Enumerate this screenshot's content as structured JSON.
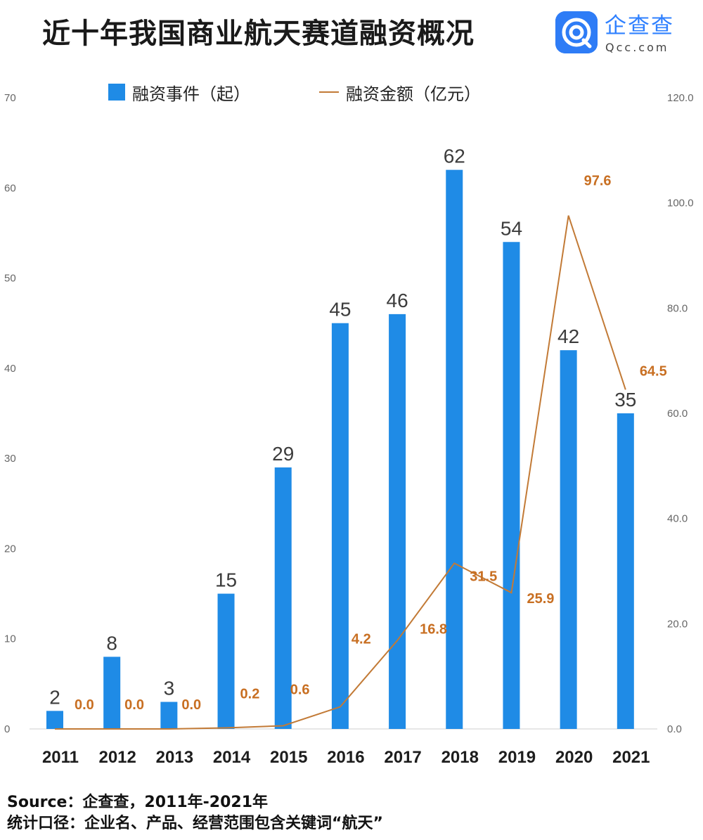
{
  "title": "近十年我国商业航天赛道融资概况",
  "brand": {
    "name": "企查查",
    "domain": "Qcc.com",
    "icon": "qcc-logo-icon",
    "colors": {
      "primary": "#2e7cf6",
      "text": "#2f80ff"
    }
  },
  "legend": {
    "bar_label": "融资事件（起）",
    "line_label": "融资金额（亿元）"
  },
  "chart_data": {
    "type": "bar-line",
    "categories": [
      "2011",
      "2012",
      "2013",
      "2014",
      "2015",
      "2016",
      "2017",
      "2018",
      "2019",
      "2020",
      "2021"
    ],
    "series": [
      {
        "name": "融资事件（起）",
        "type": "bar",
        "axis": "left",
        "values": [
          2,
          8,
          3,
          15,
          29,
          45,
          46,
          62,
          54,
          42,
          35
        ],
        "color": "#1f8be6"
      },
      {
        "name": "融资金额（亿元）",
        "type": "line",
        "axis": "right",
        "values": [
          0.0,
          0.0,
          0.0,
          0.2,
          0.6,
          4.2,
          16.8,
          31.5,
          25.9,
          97.6,
          64.5
        ],
        "color": "#c27a36"
      }
    ],
    "y_left": {
      "min": 0,
      "max": 70,
      "ticks": [
        "0",
        "10",
        "20",
        "30",
        "40",
        "50",
        "60",
        "70"
      ]
    },
    "y_right": {
      "min": 0,
      "max": 120,
      "ticks": [
        "0.0",
        "20.0",
        "40.0",
        "60.0",
        "80.0",
        "100.0",
        "120.0"
      ]
    },
    "grid": false,
    "legend_position": "top"
  },
  "footer": {
    "source": "Source：企查查，2011年-2021年",
    "note": "统计口径：企业名、产品、经营范围包含关键词“航天”"
  }
}
